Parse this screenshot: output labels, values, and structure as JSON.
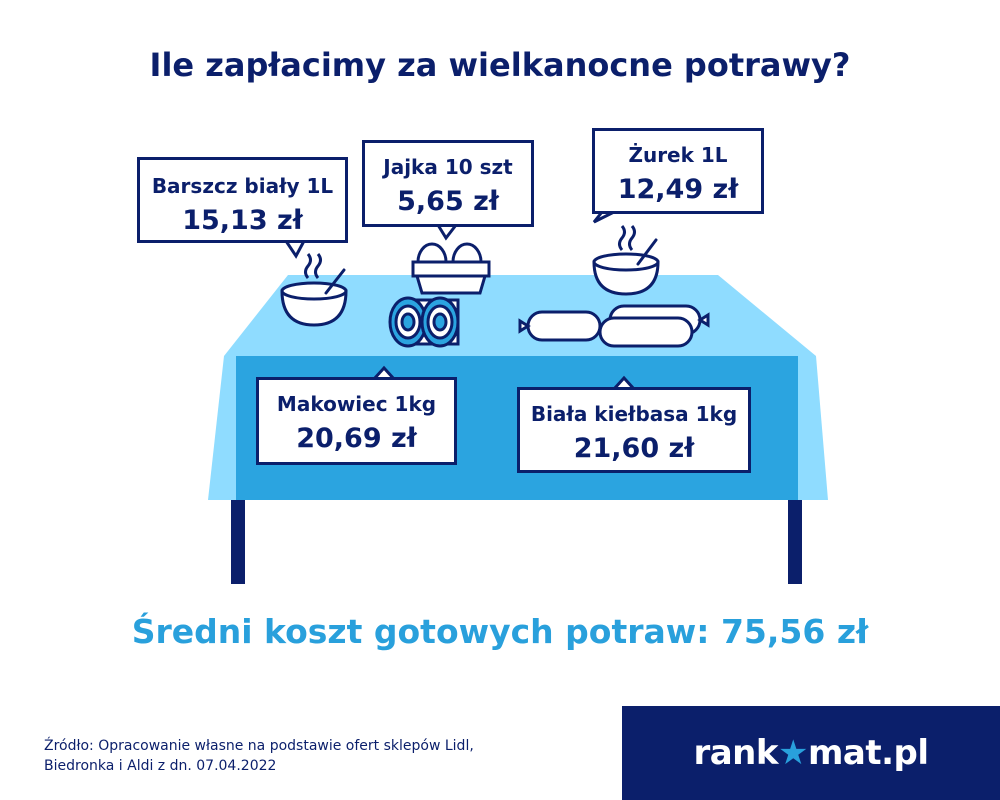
{
  "title": "Ile zapłacimy za wielkanocne potrawy?",
  "items": [
    {
      "label": "Barszcz biały 1L",
      "price": "15,13 zł"
    },
    {
      "label": "Jajka 10 szt",
      "price": "5,65 zł"
    },
    {
      "label": "Żurek 1L",
      "price": "12,49 zł"
    },
    {
      "label": "Makowiec 1kg",
      "price": "20,69 zł"
    },
    {
      "label": "Biała kiełbasa 1kg",
      "price": "21,60 zł"
    }
  ],
  "average": "Średni koszt gotowych potraw: 75,56 zł",
  "source_line1": "Źródło: Opracowanie własne na podstawie ofert sklepów Lidl,",
  "source_line2": "Biedronka i Aldi z dn. 07.04.2022",
  "brand": {
    "part1": "rank",
    "part2": "mat.pl",
    "star": "★"
  },
  "colors": {
    "navy": "#0b1f6b",
    "accent": "#29a0dc",
    "table_light": "#8fdcff",
    "table_dark": "#2ba4e0"
  }
}
